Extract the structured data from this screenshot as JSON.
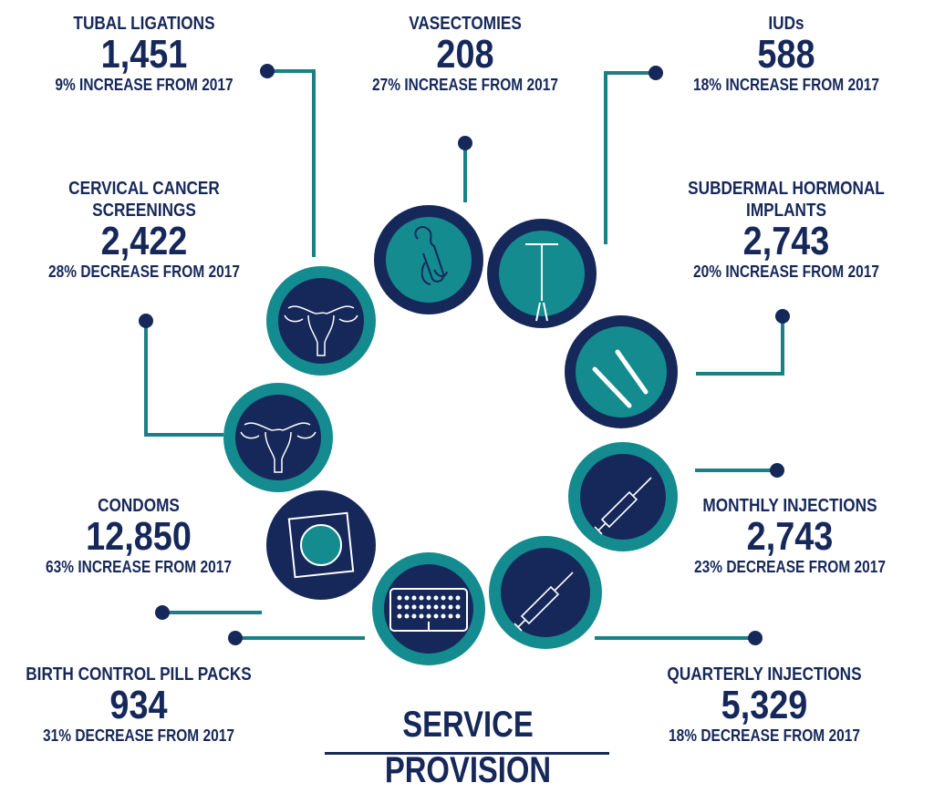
{
  "title": "SERVICE PROVISION",
  "colors": {
    "navy": "#16285a",
    "teal": "#148b8f",
    "line": "#1d7f86"
  },
  "items": {
    "tubal": {
      "label": "TUBAL LIGATIONS",
      "value": "1,451",
      "change": "9% INCREASE FROM 2017",
      "icon": "uterus-icon"
    },
    "vasectomy": {
      "label": "VASECTOMIES",
      "value": "208",
      "change": "27% INCREASE FROM 2017",
      "icon": "male-anatomy-icon"
    },
    "iud": {
      "label": "IUDs",
      "value": "588",
      "change": "18% INCREASE FROM 2017",
      "icon": "iud-icon"
    },
    "cervical": {
      "label_line1": "CERVICAL CANCER",
      "label_line2": "SCREENINGS",
      "value": "2,422",
      "change": "28% DECREASE FROM 2017",
      "icon": "uterus-icon"
    },
    "implants": {
      "label_line1": "SUBDERMAL HORMONAL",
      "label_line2": "IMPLANTS",
      "value": "2,743",
      "change": "20% INCREASE FROM 2017",
      "icon": "implant-rods-icon"
    },
    "condoms": {
      "label": "CONDOMS",
      "value": "12,850",
      "change": "63% INCREASE FROM 2017",
      "icon": "condom-icon"
    },
    "monthly": {
      "label": "MONTHLY INJECTIONS",
      "value": "2,743",
      "change": "23% DECREASE FROM 2017",
      "icon": "syringe-icon"
    },
    "pills": {
      "label": "BIRTH CONTROL PILL PACKS",
      "value": "934",
      "change": "31% DECREASE FROM 2017",
      "icon": "pill-pack-icon"
    },
    "quarterly": {
      "label": "QUARTERLY INJECTIONS",
      "value": "5,329",
      "change": "18% DECREASE FROM 2017",
      "icon": "syringe-icon"
    }
  }
}
